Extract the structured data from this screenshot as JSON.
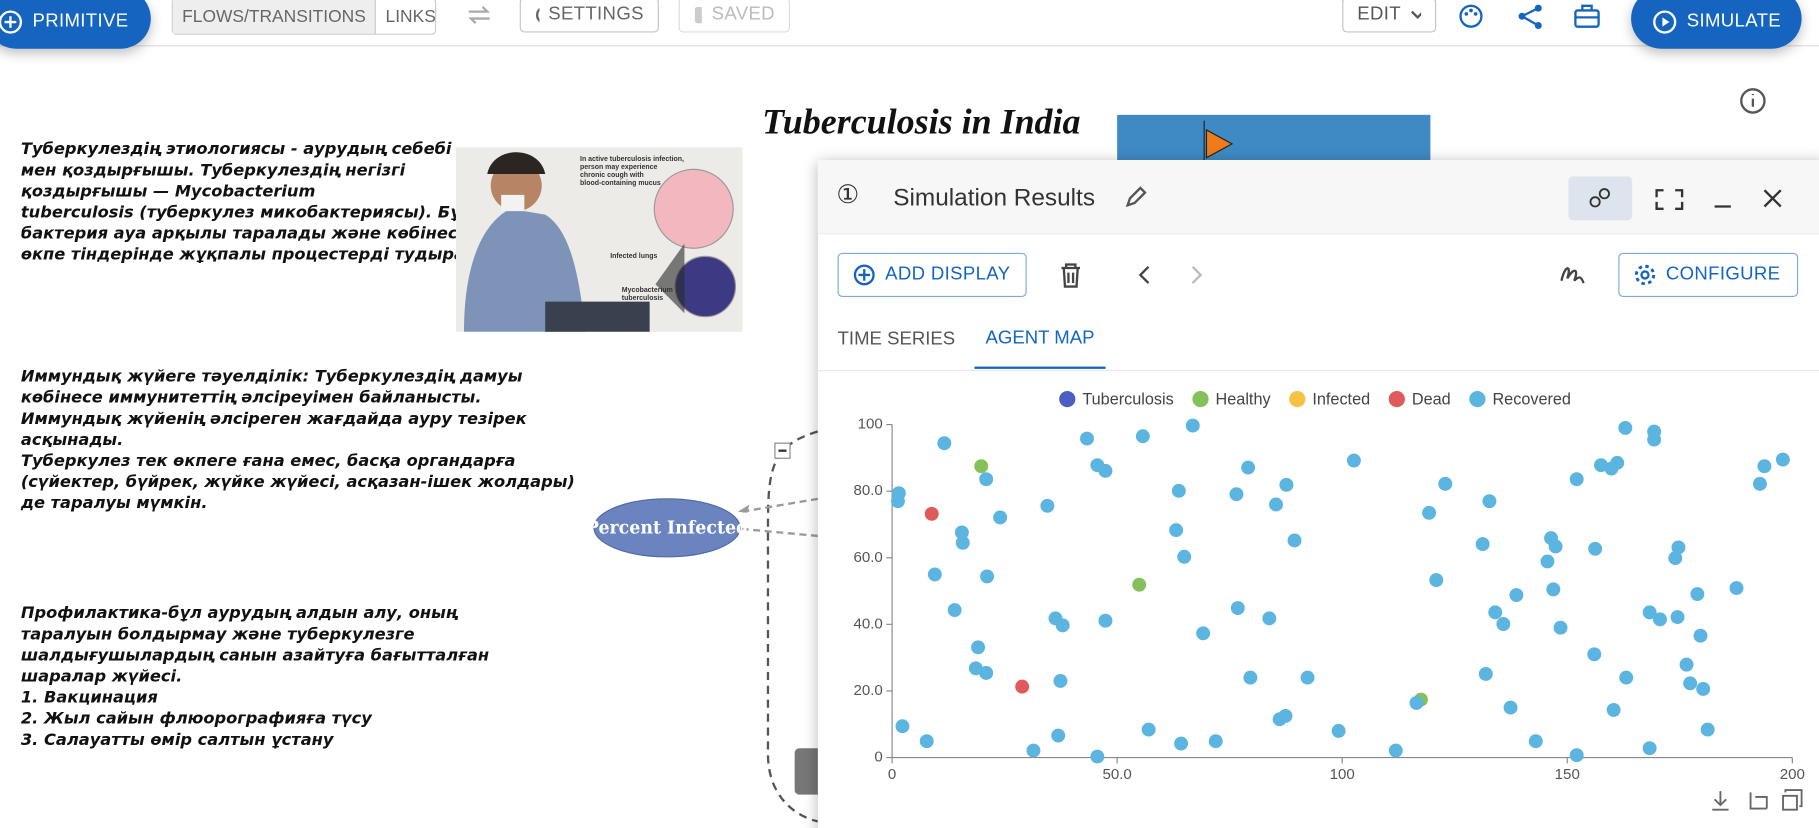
{
  "toolbar": {
    "primitive": "PRIMITIVE",
    "flows": "FLOWS/TRANSITIONS",
    "links": "LINKS",
    "settings": "SETTINGS",
    "saved": "SAVED",
    "edit": "EDIT",
    "simulate": "SIMULATE"
  },
  "canvas": {
    "title": "Tuberculosis in India",
    "paragraphs": [
      [
        "Туберкулездің этиологиясы - аурудың себебі",
        "мен қоздырғышы. Туберкулездің негізгі",
        "қоздырғышы — Mycobacterium",
        "tuberculosis (туберкулез микобактериясы). Бұл",
        "бактерия ауа арқылы таралады және көбінесе",
        "өкпе тіндерінде жұқпалы процестерді тудырады."
      ],
      [
        "Иммундық жүйеге тәуелділік: Туберкулездің дамуы",
        "көбінесе иммунитеттің әлсіреуімен байланысты.",
        "Иммундық жүйенің әлсіреген жағдайда ауру тезірек",
        "асқынады.",
        "Туберкулез тек өкпеге ғана емес, басқа органдарға",
        "(сүйектер, бүйрек, жүйке жүйесі, асқазан-ішек жолдары)",
        "де таралуы мүмкін."
      ],
      [
        "Профилактика-бұл аурудың алдын алу, оның",
        "таралуын болдырмау және туберкулезге",
        "шалдығушылардың санын азайтуға бағытталған",
        "шаралар жүйесі.",
        "1. Вакцинация",
        "2. Жыл сайын флюорографияға түсу",
        "3. Салауатты өмір салтын ұстану"
      ]
    ],
    "image_labels": [
      "In active tuberculosis infection,",
      "person may experience",
      "chronic cough with",
      "blood-containing mucus",
      "Infected lungs",
      "Mycobacterium",
      "tuberculosis"
    ],
    "node": "Percent Infected"
  },
  "panel": {
    "number": "①",
    "title": "Simulation Results",
    "add_display": "ADD DISPLAY",
    "configure": "CONFIGURE",
    "tabs": [
      "TIME SERIES",
      "AGENT MAP"
    ]
  },
  "chart_data": {
    "type": "scatter",
    "xlim": [
      0,
      200
    ],
    "xticks": [
      0,
      {
        "value": 50,
        "label": "50.0"
      },
      100,
      150,
      200
    ],
    "ylim": [
      0,
      100
    ],
    "yticks": [
      0,
      {
        "value": 20,
        "label": "20.0"
      },
      {
        "value": 40,
        "label": "40.0"
      },
      {
        "value": 60,
        "label": "60.0"
      },
      {
        "value": 80,
        "label": "80.0"
      },
      100
    ],
    "grid": false,
    "series": [
      {
        "name": "Tuberculosis",
        "color": "#4a5fc1",
        "x": [],
        "values": []
      },
      {
        "name": "Healthy",
        "color": "#86c05a",
        "x": [
          19.8,
          54.9,
          117.5
        ],
        "values": [
          87.5,
          51.9,
          17.4
        ]
      },
      {
        "name": "Infected",
        "color": "#f5c242",
        "x": [],
        "values": []
      },
      {
        "name": "Dead",
        "color": "#e05a5a",
        "x": [
          8.8,
          28.9
        ],
        "values": [
          73.2,
          21.3
        ]
      },
      {
        "name": "Recovered",
        "color": "#5bb5e0",
        "x": [
          1.5,
          1.3,
          2.3,
          7.7,
          9.5,
          11.6,
          13.9,
          15.5,
          15.7,
          19.1,
          18.6,
          20.9,
          20.9,
          21.1,
          24,
          31.4,
          34.5,
          36.3,
          37.9,
          37.4,
          36.9,
          43.3,
          45.6,
          47.4,
          47.4,
          45.6,
          55.7,
          57,
          63.7,
          63.1,
          64.9,
          64.2,
          66.8,
          69.1,
          71.9,
          76.5,
          76.8,
          79.1,
          79.6,
          83.8,
          85.3,
          87.6,
          86.1,
          87.4,
          89.4,
          92.3,
          99.2,
          102.6,
          111.9,
          116.5,
          119.3,
          120.9,
          122.9,
          131.2,
          131.9,
          132.7,
          134,
          135.8,
          137.4,
          138.7,
          143,
          145.6,
          146.4,
          147.4,
          146.9,
          148.5,
          152.1,
          152.1,
          156,
          156.2,
          157.5,
          159.8,
          161.1,
          160.3,
          162.9,
          163.1,
          168.3,
          168.3,
          169.3,
          169.3,
          170.6,
          174,
          174.7,
          174.5,
          176.5,
          177.3,
          178.9,
          179.6,
          180.2,
          181.2,
          187.6,
          192.8,
          193.8,
          197.9
        ],
        "values": [
          79.4,
          77,
          9.4,
          4.9,
          55,
          94.4,
          44.3,
          67.6,
          64.5,
          33.1,
          26.8,
          25.4,
          83.6,
          54.4,
          72.1,
          2.1,
          75.6,
          41.8,
          39.7,
          23,
          6.6,
          95.8,
          87.8,
          86.1,
          41.1,
          0.3,
          96.5,
          8.4,
          80.1,
          68.3,
          60.3,
          4.2,
          99.7,
          37.3,
          4.9,
          79.1,
          44.9,
          87.1,
          24,
          41.8,
          76,
          81.9,
          11.5,
          12.5,
          65.2,
          24,
          8,
          89.2,
          2.1,
          16.4,
          73.5,
          53.3,
          82.2,
          64.1,
          25.1,
          77,
          43.6,
          40.1,
          15,
          48.8,
          4.9,
          58.9,
          65.9,
          63.4,
          50.5,
          39,
          83.6,
          0.7,
          31,
          62.7,
          87.8,
          86.8,
          88.5,
          14.3,
          99,
          24,
          2.8,
          43.6,
          97.9,
          95.5,
          41.5,
          59.9,
          63.1,
          42.2,
          27.9,
          22.3,
          49.1,
          36.6,
          20.6,
          8.4,
          50.9,
          82.2,
          87.5,
          89.5
        ]
      }
    ]
  }
}
